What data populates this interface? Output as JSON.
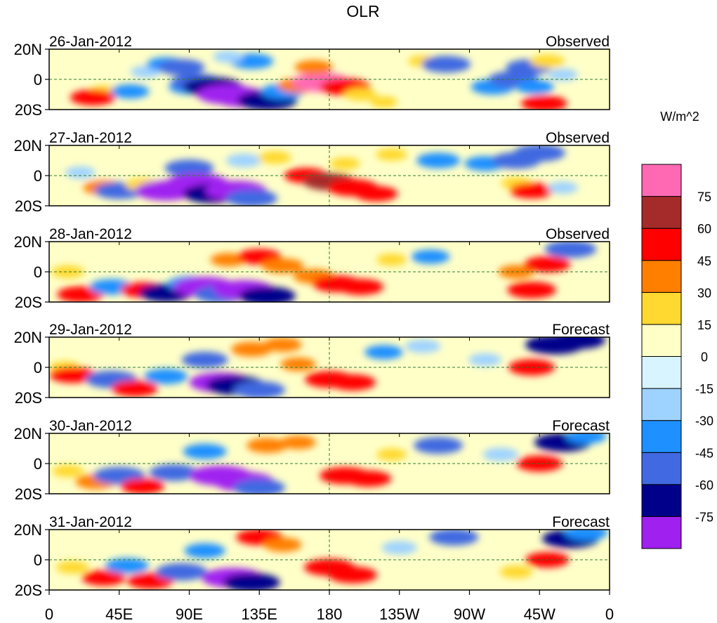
{
  "chart_data": {
    "type": "heatmap",
    "title": "OLR",
    "variable": "OLR",
    "units": "W/m^2",
    "lat_range": [
      -20,
      20
    ],
    "lon_range": [
      0,
      360
    ],
    "x_ticks": [
      {
        "lon": 0,
        "label": "0"
      },
      {
        "lon": 45,
        "label": "45E"
      },
      {
        "lon": 90,
        "label": "90E"
      },
      {
        "lon": 135,
        "label": "135E"
      },
      {
        "lon": 180,
        "label": "180"
      },
      {
        "lon": 225,
        "label": "135W"
      },
      {
        "lon": 270,
        "label": "90W"
      },
      {
        "lon": 315,
        "label": "45W"
      },
      {
        "lon": 360,
        "label": "0"
      }
    ],
    "y_ticks": [
      {
        "lat": 20,
        "label": "20N"
      },
      {
        "lat": 0,
        "label": "0"
      },
      {
        "lat": -20,
        "label": "20S"
      }
    ],
    "colorbar": {
      "label": "W/m^2",
      "levels": [
        -75,
        -60,
        -45,
        -30,
        -15,
        0,
        15,
        30,
        45,
        60,
        75
      ],
      "tick_labels": [
        "-75",
        "-60",
        "-45",
        "-30",
        "-15",
        "0",
        "15",
        "30",
        "45",
        "60",
        "75"
      ],
      "colors": [
        "#a020f0",
        "#00008b",
        "#4169e1",
        "#1e90ff",
        "#9fd3ff",
        "#d8f4ff",
        "#ffffc8",
        "#ffd92f",
        "#ff7f00",
        "#ff0000",
        "#a52a2a",
        "#ff69b4"
      ]
    },
    "panels": [
      {
        "date": "26-Jan-2012",
        "kind": "Observed",
        "features": [
          {
            "lon": 35,
            "lat": -8,
            "value": 18
          },
          {
            "lon": 28,
            "lat": -12,
            "value": 48
          },
          {
            "lon": 52,
            "lat": -8,
            "value": -35
          },
          {
            "lon": 62,
            "lat": 5,
            "value": -20
          },
          {
            "lon": 75,
            "lat": 10,
            "value": -35
          },
          {
            "lon": 85,
            "lat": 8,
            "value": -50
          },
          {
            "lon": 90,
            "lat": -5,
            "value": -40
          },
          {
            "lon": 95,
            "lat": -2,
            "value": -60
          },
          {
            "lon": 105,
            "lat": -5,
            "value": -75
          },
          {
            "lon": 115,
            "lat": -10,
            "value": -80
          },
          {
            "lon": 125,
            "lat": -12,
            "value": -78
          },
          {
            "lon": 140,
            "lat": -14,
            "value": -75
          },
          {
            "lon": 150,
            "lat": -8,
            "value": -45
          },
          {
            "lon": 130,
            "lat": 12,
            "value": -45
          },
          {
            "lon": 115,
            "lat": 15,
            "value": -20
          },
          {
            "lon": 160,
            "lat": -4,
            "value": 40
          },
          {
            "lon": 175,
            "lat": -2,
            "value": 75
          },
          {
            "lon": 190,
            "lat": -5,
            "value": 58
          },
          {
            "lon": 170,
            "lat": 8,
            "value": 35
          },
          {
            "lon": 200,
            "lat": -10,
            "value": 25
          },
          {
            "lon": 215,
            "lat": -15,
            "value": 15
          },
          {
            "lon": 240,
            "lat": 12,
            "value": 18
          },
          {
            "lon": 255,
            "lat": 10,
            "value": -55
          },
          {
            "lon": 285,
            "lat": -5,
            "value": -45
          },
          {
            "lon": 298,
            "lat": 0,
            "value": -55
          },
          {
            "lon": 308,
            "lat": 8,
            "value": -48
          },
          {
            "lon": 312,
            "lat": -5,
            "value": -35
          },
          {
            "lon": 320,
            "lat": 12,
            "value": 28
          },
          {
            "lon": 330,
            "lat": 3,
            "value": -20
          },
          {
            "lon": 318,
            "lat": -16,
            "value": 50
          }
        ]
      },
      {
        "date": "27-Jan-2012",
        "kind": "Observed",
        "features": [
          {
            "lon": 20,
            "lat": 2,
            "value": -20
          },
          {
            "lon": 35,
            "lat": -8,
            "value": 40
          },
          {
            "lon": 45,
            "lat": -10,
            "value": -55
          },
          {
            "lon": 60,
            "lat": -6,
            "value": 28
          },
          {
            "lon": 75,
            "lat": -10,
            "value": -78
          },
          {
            "lon": 90,
            "lat": 5,
            "value": -55
          },
          {
            "lon": 95,
            "lat": -5,
            "value": -80
          },
          {
            "lon": 105,
            "lat": -12,
            "value": -75
          },
          {
            "lon": 120,
            "lat": -10,
            "value": -78
          },
          {
            "lon": 130,
            "lat": -15,
            "value": -60
          },
          {
            "lon": 125,
            "lat": 10,
            "value": -30
          },
          {
            "lon": 145,
            "lat": 12,
            "value": 25
          },
          {
            "lon": 165,
            "lat": 0,
            "value": 45
          },
          {
            "lon": 180,
            "lat": -4,
            "value": 62
          },
          {
            "lon": 195,
            "lat": -8,
            "value": 58
          },
          {
            "lon": 210,
            "lat": -12,
            "value": 45
          },
          {
            "lon": 190,
            "lat": 8,
            "value": 20
          },
          {
            "lon": 220,
            "lat": 14,
            "value": 22
          },
          {
            "lon": 250,
            "lat": 10,
            "value": -45
          },
          {
            "lon": 280,
            "lat": 8,
            "value": -40
          },
          {
            "lon": 300,
            "lat": 10,
            "value": -55
          },
          {
            "lon": 315,
            "lat": 15,
            "value": -60
          },
          {
            "lon": 300,
            "lat": -5,
            "value": 20
          },
          {
            "lon": 310,
            "lat": -10,
            "value": 45
          },
          {
            "lon": 330,
            "lat": -8,
            "value": -20
          }
        ]
      },
      {
        "date": "28-Jan-2012",
        "kind": "Observed",
        "features": [
          {
            "lon": 12,
            "lat": 0,
            "value": 25
          },
          {
            "lon": 20,
            "lat": -15,
            "value": 50
          },
          {
            "lon": 40,
            "lat": -10,
            "value": -45
          },
          {
            "lon": 60,
            "lat": -12,
            "value": 45
          },
          {
            "lon": 75,
            "lat": -14,
            "value": -65
          },
          {
            "lon": 90,
            "lat": -8,
            "value": -45
          },
          {
            "lon": 100,
            "lat": -10,
            "value": -80
          },
          {
            "lon": 110,
            "lat": -15,
            "value": -60
          },
          {
            "lon": 125,
            "lat": -12,
            "value": -78
          },
          {
            "lon": 140,
            "lat": -16,
            "value": -70
          },
          {
            "lon": 115,
            "lat": 8,
            "value": 30
          },
          {
            "lon": 135,
            "lat": 10,
            "value": 45
          },
          {
            "lon": 150,
            "lat": 4,
            "value": 42
          },
          {
            "lon": 170,
            "lat": -3,
            "value": 40
          },
          {
            "lon": 185,
            "lat": -8,
            "value": 55
          },
          {
            "lon": 200,
            "lat": -10,
            "value": 50
          },
          {
            "lon": 220,
            "lat": 8,
            "value": 20
          },
          {
            "lon": 245,
            "lat": 10,
            "value": -35
          },
          {
            "lon": 300,
            "lat": 0,
            "value": 30
          },
          {
            "lon": 310,
            "lat": -12,
            "value": 55
          },
          {
            "lon": 320,
            "lat": 5,
            "value": 50
          },
          {
            "lon": 335,
            "lat": 15,
            "value": -60
          }
        ]
      },
      {
        "date": "29-Jan-2012",
        "kind": "Forecast",
        "features": [
          {
            "lon": 10,
            "lat": 0,
            "value": 20
          },
          {
            "lon": 15,
            "lat": -5,
            "value": 50
          },
          {
            "lon": 40,
            "lat": -8,
            "value": -60
          },
          {
            "lon": 55,
            "lat": -14,
            "value": 50
          },
          {
            "lon": 75,
            "lat": -6,
            "value": -45
          },
          {
            "lon": 100,
            "lat": 5,
            "value": -50
          },
          {
            "lon": 110,
            "lat": -10,
            "value": -80
          },
          {
            "lon": 120,
            "lat": -12,
            "value": -75
          },
          {
            "lon": 135,
            "lat": -15,
            "value": -60
          },
          {
            "lon": 130,
            "lat": 12,
            "value": 40
          },
          {
            "lon": 150,
            "lat": 15,
            "value": 35
          },
          {
            "lon": 160,
            "lat": 2,
            "value": 30
          },
          {
            "lon": 180,
            "lat": -8,
            "value": 55
          },
          {
            "lon": 195,
            "lat": -10,
            "value": 50
          },
          {
            "lon": 215,
            "lat": 10,
            "value": -35
          },
          {
            "lon": 240,
            "lat": 14,
            "value": -30
          },
          {
            "lon": 280,
            "lat": 5,
            "value": -25
          },
          {
            "lon": 310,
            "lat": 0,
            "value": 50
          },
          {
            "lon": 325,
            "lat": 15,
            "value": -75
          },
          {
            "lon": 340,
            "lat": 18,
            "value": -65
          }
        ]
      },
      {
        "date": "30-Jan-2012",
        "kind": "Forecast",
        "features": [
          {
            "lon": 12,
            "lat": -5,
            "value": 22
          },
          {
            "lon": 30,
            "lat": -12,
            "value": 40
          },
          {
            "lon": 45,
            "lat": -8,
            "value": -60
          },
          {
            "lon": 60,
            "lat": -15,
            "value": 45
          },
          {
            "lon": 80,
            "lat": -6,
            "value": -55
          },
          {
            "lon": 100,
            "lat": 8,
            "value": -45
          },
          {
            "lon": 110,
            "lat": -8,
            "value": -80
          },
          {
            "lon": 125,
            "lat": -12,
            "value": -78
          },
          {
            "lon": 135,
            "lat": -16,
            "value": -60
          },
          {
            "lon": 140,
            "lat": 12,
            "value": 40
          },
          {
            "lon": 160,
            "lat": 14,
            "value": 30
          },
          {
            "lon": 190,
            "lat": -8,
            "value": 58
          },
          {
            "lon": 205,
            "lat": -10,
            "value": 50
          },
          {
            "lon": 220,
            "lat": 6,
            "value": 20
          },
          {
            "lon": 250,
            "lat": 12,
            "value": -55
          },
          {
            "lon": 290,
            "lat": 6,
            "value": -30
          },
          {
            "lon": 315,
            "lat": 0,
            "value": 50
          },
          {
            "lon": 330,
            "lat": 14,
            "value": -70
          },
          {
            "lon": 345,
            "lat": 18,
            "value": -40
          }
        ]
      },
      {
        "date": "31-Jan-2012",
        "kind": "Forecast",
        "features": [
          {
            "lon": 15,
            "lat": -5,
            "value": 25
          },
          {
            "lon": 35,
            "lat": -12,
            "value": 45
          },
          {
            "lon": 50,
            "lat": -4,
            "value": -45
          },
          {
            "lon": 65,
            "lat": -14,
            "value": 50
          },
          {
            "lon": 85,
            "lat": -8,
            "value": -60
          },
          {
            "lon": 100,
            "lat": 6,
            "value": -40
          },
          {
            "lon": 118,
            "lat": -12,
            "value": -80
          },
          {
            "lon": 130,
            "lat": -15,
            "value": -70
          },
          {
            "lon": 135,
            "lat": 15,
            "value": 50
          },
          {
            "lon": 150,
            "lat": 10,
            "value": 35
          },
          {
            "lon": 180,
            "lat": -5,
            "value": 58
          },
          {
            "lon": 195,
            "lat": -10,
            "value": 55
          },
          {
            "lon": 225,
            "lat": 8,
            "value": -30
          },
          {
            "lon": 260,
            "lat": 15,
            "value": -55
          },
          {
            "lon": 300,
            "lat": -8,
            "value": 25
          },
          {
            "lon": 320,
            "lat": 0,
            "value": 45
          },
          {
            "lon": 335,
            "lat": 14,
            "value": -70
          },
          {
            "lon": 345,
            "lat": 18,
            "value": -45
          }
        ]
      }
    ]
  }
}
